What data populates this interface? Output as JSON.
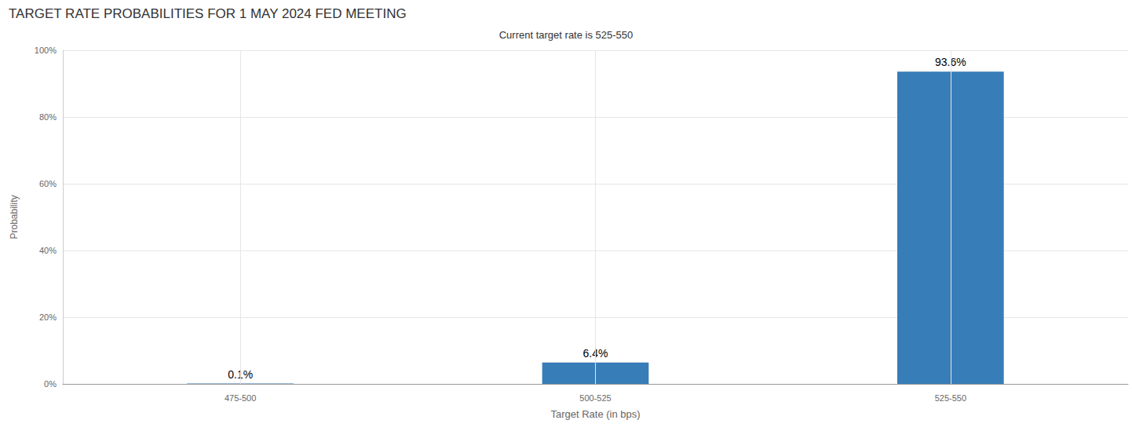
{
  "chart_data": {
    "type": "bar",
    "title": "TARGET RATE PROBABILITIES FOR 1 MAY 2024 FED MEETING",
    "subtitle": "Current target rate is 525-550",
    "x_label": "Target Rate (in bps)",
    "y_label": "Probability",
    "categories": [
      "475-500",
      "500-525",
      "525-550"
    ],
    "values": [
      0.1,
      6.4,
      93.6
    ],
    "value_labels": [
      "0.1%",
      "6.4%",
      "93.6%"
    ],
    "color": "#377db8",
    "ylim": [
      0,
      100
    ],
    "yticks": [
      {
        "value": 0,
        "label": "0%"
      },
      {
        "value": 20,
        "label": "20%"
      },
      {
        "value": 40,
        "label": "40%"
      },
      {
        "value": 60,
        "label": "60%"
      },
      {
        "value": 80,
        "label": "80%"
      },
      {
        "value": 100,
        "label": "100%"
      }
    ],
    "grid": true,
    "data_labels": true
  }
}
